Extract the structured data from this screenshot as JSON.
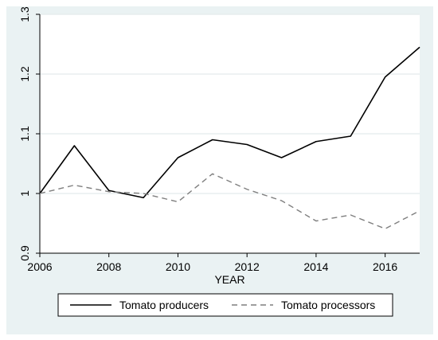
{
  "chart_data": {
    "type": "line",
    "title": "",
    "xlabel": "YEAR",
    "ylabel": "",
    "x": [
      2006,
      2007,
      2008,
      2009,
      2010,
      2011,
      2012,
      2013,
      2014,
      2015,
      2016,
      2017
    ],
    "xlim": [
      2006,
      2017
    ],
    "ylim": [
      0.9,
      1.3
    ],
    "xticks": [
      "2006",
      "2008",
      "2010",
      "2012",
      "2014",
      "2016"
    ],
    "yticks": [
      "0.9",
      "1",
      "1.1",
      "1.2",
      "1.3"
    ],
    "grid": true,
    "legend_position": "bottom",
    "series": [
      {
        "name": "Tomato producers",
        "color": "#000000",
        "style": "solid",
        "values": [
          1.0,
          1.08,
          1.005,
          0.993,
          1.06,
          1.09,
          1.082,
          1.06,
          1.087,
          1.096,
          1.195,
          1.245
        ]
      },
      {
        "name": "Tomato processors",
        "color": "#7f7f7f",
        "style": "dashed",
        "values": [
          1.0,
          1.014,
          1.003,
          1.0,
          0.986,
          1.033,
          1.007,
          0.988,
          0.954,
          0.964,
          0.941,
          0.971
        ]
      }
    ]
  }
}
